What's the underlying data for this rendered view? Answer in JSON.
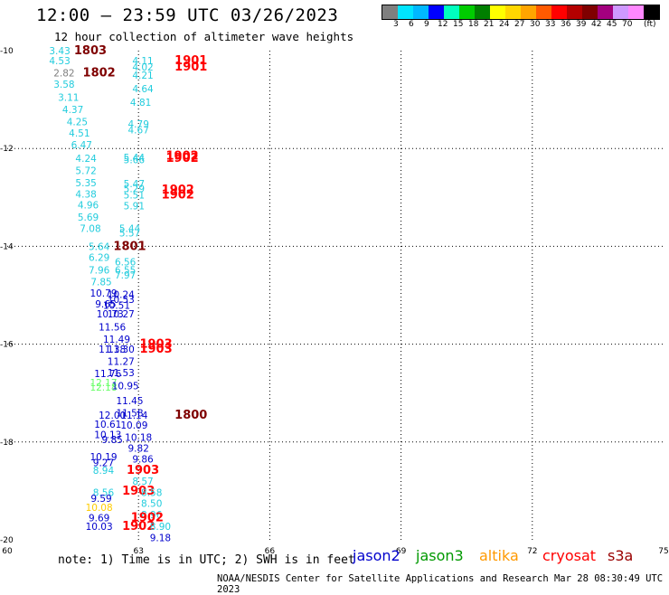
{
  "header": {
    "title": "12:00 – 23:59 UTC 03/26/2023",
    "subtitle": "12 hour collection of altimeter wave heights"
  },
  "colorbar": {
    "colors": [
      "#7f7f7f",
      "#00e5ff",
      "#00b8ff",
      "#0000ff",
      "#00ffbf",
      "#00cc00",
      "#007f00",
      "#ffff00",
      "#ffd700",
      "#ffa500",
      "#ff5a00",
      "#ff0000",
      "#b40000",
      "#7f0000",
      "#a3007f",
      "#cf99ff",
      "#ff88ff",
      "#000000"
    ],
    "labels": [
      "3",
      "6",
      "9",
      "12",
      "15",
      "18",
      "21",
      "24",
      "27",
      "30",
      "33",
      "36",
      "39",
      "42",
      "45",
      "70"
    ],
    "unit": "(ft)"
  },
  "note": "note:  1) Time is in UTC;  2) SWH is in feet",
  "legend": [
    {
      "label": "jason2",
      "color": "#0000cc"
    },
    {
      "label": "jason3",
      "color": "#009900"
    },
    {
      "label": "altika",
      "color": "#ff9900"
    },
    {
      "label": "cryosat",
      "color": "#ff0000"
    },
    {
      "label": "s3a",
      "color": "#990000"
    }
  ],
  "footer": "NOAA/NESDIS Center for Satellite Applications and Research    Mar 28 08:30:49 UTC 2023",
  "chart_data": {
    "type": "scatter",
    "xlim": [
      60,
      75
    ],
    "ylim": [
      -20,
      -10
    ],
    "x_ticks": [
      "60",
      "63",
      "66",
      "69",
      "72",
      "75"
    ],
    "y_ticks": [
      "-10",
      "-12",
      "-14",
      "-16",
      "-18",
      "-20"
    ],
    "grid": "dotted",
    "points": [
      {
        "x": 61.2,
        "y": -10.0,
        "v": "3.43",
        "c": "#22ccdd"
      },
      {
        "x": 61.9,
        "y": -10.0,
        "v": "1803",
        "c": "#7f0000",
        "big": true
      },
      {
        "x": 61.2,
        "y": -10.2,
        "v": "4.53",
        "c": "#22ccdd"
      },
      {
        "x": 63.1,
        "y": -10.2,
        "v": "4.11",
        "c": "#22ccdd"
      },
      {
        "x": 64.2,
        "y": -10.2,
        "v": "1901",
        "c": "#ff0000",
        "big": true
      },
      {
        "x": 63.1,
        "y": -10.33,
        "v": "4.02",
        "c": "#22ccdd"
      },
      {
        "x": 64.2,
        "y": -10.33,
        "v": "1901",
        "c": "#ff0000",
        "big": true
      },
      {
        "x": 61.3,
        "y": -10.45,
        "v": "2.82",
        "c": "#7f7f7f"
      },
      {
        "x": 62.1,
        "y": -10.45,
        "v": "1802",
        "c": "#7f0000",
        "big": true
      },
      {
        "x": 63.1,
        "y": -10.5,
        "v": "4.21",
        "c": "#22ccdd"
      },
      {
        "x": 61.3,
        "y": -10.68,
        "v": "3.58",
        "c": "#22ccdd"
      },
      {
        "x": 63.1,
        "y": -10.78,
        "v": "4.64",
        "c": "#22ccdd"
      },
      {
        "x": 61.4,
        "y": -10.95,
        "v": "3.11",
        "c": "#22ccdd"
      },
      {
        "x": 63.05,
        "y": -11.05,
        "v": "4.81",
        "c": "#22ccdd"
      },
      {
        "x": 61.5,
        "y": -11.2,
        "v": "4.37",
        "c": "#22ccdd"
      },
      {
        "x": 61.6,
        "y": -11.45,
        "v": "4.25",
        "c": "#22ccdd"
      },
      {
        "x": 63.0,
        "y": -11.5,
        "v": "4.79",
        "c": "#22ccdd"
      },
      {
        "x": 61.65,
        "y": -11.68,
        "v": "4.51",
        "c": "#22ccdd"
      },
      {
        "x": 63.0,
        "y": -11.62,
        "v": "4.67",
        "c": "#22ccdd"
      },
      {
        "x": 61.7,
        "y": -11.92,
        "v": "6.47",
        "c": "#22ccdd"
      },
      {
        "x": 61.8,
        "y": -12.2,
        "v": "4.24",
        "c": "#22ccdd"
      },
      {
        "x": 62.9,
        "y": -12.18,
        "v": "5.44",
        "c": "#22ccdd"
      },
      {
        "x": 62.9,
        "y": -12.23,
        "v": "5.66",
        "c": "#22ccdd"
      },
      {
        "x": 64.0,
        "y": -12.15,
        "v": "1902",
        "c": "#ff0000",
        "big": true
      },
      {
        "x": 64.0,
        "y": -12.2,
        "v": "1902",
        "c": "#ff0000",
        "big": true
      },
      {
        "x": 61.8,
        "y": -12.45,
        "v": "5.72",
        "c": "#22ccdd"
      },
      {
        "x": 61.8,
        "y": -12.7,
        "v": "5.35",
        "c": "#22ccdd"
      },
      {
        "x": 62.9,
        "y": -12.72,
        "v": "5.47",
        "c": "#22ccdd"
      },
      {
        "x": 62.9,
        "y": -12.82,
        "v": "5.29",
        "c": "#22ccdd"
      },
      {
        "x": 63.9,
        "y": -12.85,
        "v": "1902",
        "c": "#ff0000",
        "big": true
      },
      {
        "x": 61.8,
        "y": -12.93,
        "v": "4.38",
        "c": "#22ccdd"
      },
      {
        "x": 62.9,
        "y": -12.95,
        "v": "5.51",
        "c": "#22ccdd"
      },
      {
        "x": 63.9,
        "y": -12.95,
        "v": "1902",
        "c": "#ff0000",
        "big": true
      },
      {
        "x": 61.85,
        "y": -13.15,
        "v": "4.96",
        "c": "#22ccdd"
      },
      {
        "x": 62.9,
        "y": -13.17,
        "v": "5.91",
        "c": "#22ccdd"
      },
      {
        "x": 61.85,
        "y": -13.4,
        "v": "5.69",
        "c": "#22ccdd"
      },
      {
        "x": 61.9,
        "y": -13.63,
        "v": "7.08",
        "c": "#22ccdd"
      },
      {
        "x": 62.8,
        "y": -13.63,
        "v": "5.44",
        "c": "#22ccdd"
      },
      {
        "x": 62.8,
        "y": -13.72,
        "v": "5.57",
        "c": "#22ccdd"
      },
      {
        "x": 62.1,
        "y": -14.0,
        "v": "5.64",
        "c": "#22ccdd"
      },
      {
        "x": 62.8,
        "y": -14.0,
        "v": "1801",
        "c": "#7f0000",
        "big": true
      },
      {
        "x": 62.1,
        "y": -14.22,
        "v": "6.29",
        "c": "#22ccdd"
      },
      {
        "x": 62.7,
        "y": -14.32,
        "v": "6.56",
        "c": "#22ccdd"
      },
      {
        "x": 62.1,
        "y": -14.48,
        "v": "7.96",
        "c": "#22ccdd"
      },
      {
        "x": 62.7,
        "y": -14.48,
        "v": "6.55",
        "c": "#22ccdd"
      },
      {
        "x": 62.7,
        "y": -14.58,
        "v": "7.97",
        "c": "#22ccdd"
      },
      {
        "x": 62.15,
        "y": -14.72,
        "v": "7.85",
        "c": "#22ccdd"
      },
      {
        "x": 62.2,
        "y": -14.95,
        "v": "10.79",
        "c": "#0000cc"
      },
      {
        "x": 62.6,
        "y": -14.98,
        "v": "10.24",
        "c": "#0000cc"
      },
      {
        "x": 62.6,
        "y": -15.08,
        "v": "10.53",
        "c": "#0000cc"
      },
      {
        "x": 62.25,
        "y": -15.18,
        "v": "9.65",
        "c": "#0000cc"
      },
      {
        "x": 62.5,
        "y": -15.2,
        "v": "10.51",
        "c": "#0000cc"
      },
      {
        "x": 62.35,
        "y": -15.38,
        "v": "10.73",
        "c": "#0000cc"
      },
      {
        "x": 62.6,
        "y": -15.38,
        "v": "10.27",
        "c": "#0000cc"
      },
      {
        "x": 62.4,
        "y": -15.65,
        "v": "11.56",
        "c": "#0000cc"
      },
      {
        "x": 62.5,
        "y": -15.9,
        "v": "11.49",
        "c": "#0000cc"
      },
      {
        "x": 62.4,
        "y": -16.1,
        "v": "11.38",
        "c": "#0000cc"
      },
      {
        "x": 62.6,
        "y": -16.1,
        "v": "11.30",
        "c": "#0000cc"
      },
      {
        "x": 63.4,
        "y": -16.0,
        "v": "1903",
        "c": "#ff0000",
        "big": true
      },
      {
        "x": 63.4,
        "y": -16.1,
        "v": "1903",
        "c": "#ff0000",
        "big": true
      },
      {
        "x": 62.6,
        "y": -16.35,
        "v": "11.27",
        "c": "#0000cc"
      },
      {
        "x": 62.3,
        "y": -16.6,
        "v": "11.76",
        "c": "#0000cc"
      },
      {
        "x": 62.6,
        "y": -16.58,
        "v": "11.53",
        "c": "#0000cc"
      },
      {
        "x": 62.2,
        "y": -16.78,
        "v": "12.17",
        "c": "#66ff66"
      },
      {
        "x": 62.2,
        "y": -16.88,
        "v": "12.18",
        "c": "#66ff66"
      },
      {
        "x": 62.7,
        "y": -16.85,
        "v": "10.95",
        "c": "#0000cc"
      },
      {
        "x": 62.8,
        "y": -17.15,
        "v": "11.45",
        "c": "#0000cc"
      },
      {
        "x": 62.8,
        "y": -17.4,
        "v": "11.58",
        "c": "#0000cc"
      },
      {
        "x": 62.4,
        "y": -17.45,
        "v": "12.00",
        "c": "#0000cc"
      },
      {
        "x": 62.9,
        "y": -17.45,
        "v": "11.14",
        "c": "#0000cc"
      },
      {
        "x": 64.2,
        "y": -17.45,
        "v": "1800",
        "c": "#7f0000",
        "big": true
      },
      {
        "x": 62.3,
        "y": -17.63,
        "v": "10.61",
        "c": "#0000cc"
      },
      {
        "x": 62.9,
        "y": -17.65,
        "v": "10.09",
        "c": "#0000cc"
      },
      {
        "x": 62.3,
        "y": -17.85,
        "v": "10.13",
        "c": "#0000cc"
      },
      {
        "x": 62.4,
        "y": -17.95,
        "v": "9.85",
        "c": "#0000cc"
      },
      {
        "x": 63.0,
        "y": -17.9,
        "v": "10.18",
        "c": "#0000cc"
      },
      {
        "x": 63.0,
        "y": -18.12,
        "v": "9.82",
        "c": "#0000cc"
      },
      {
        "x": 62.2,
        "y": -18.3,
        "v": "10.19",
        "c": "#0000cc"
      },
      {
        "x": 62.2,
        "y": -18.42,
        "v": "9.27",
        "c": "#0000cc"
      },
      {
        "x": 63.1,
        "y": -18.35,
        "v": "9.86",
        "c": "#0000cc"
      },
      {
        "x": 62.2,
        "y": -18.58,
        "v": "8.94",
        "c": "#22ccdd"
      },
      {
        "x": 63.1,
        "y": -18.58,
        "v": "1903",
        "c": "#ff0000",
        "big": true
      },
      {
        "x": 63.1,
        "y": -18.8,
        "v": "8.57",
        "c": "#22ccdd"
      },
      {
        "x": 62.2,
        "y": -19.03,
        "v": "8.56",
        "c": "#22ccdd"
      },
      {
        "x": 63.0,
        "y": -19.0,
        "v": "1903",
        "c": "#ff0000",
        "big": true
      },
      {
        "x": 63.3,
        "y": -19.03,
        "v": "8.58",
        "c": "#22ccdd"
      },
      {
        "x": 62.15,
        "y": -19.15,
        "v": "9.59",
        "c": "#0000cc"
      },
      {
        "x": 63.3,
        "y": -19.25,
        "v": "8.50",
        "c": "#22ccdd"
      },
      {
        "x": 62.1,
        "y": -19.33,
        "v": "10.08",
        "c": "#ffcc00"
      },
      {
        "x": 63.3,
        "y": -19.48,
        "v": "8.96",
        "c": "#22ccdd"
      },
      {
        "x": 62.1,
        "y": -19.55,
        "v": "9.69",
        "c": "#0000cc"
      },
      {
        "x": 63.2,
        "y": -19.55,
        "v": "1902",
        "c": "#ff0000",
        "big": true
      },
      {
        "x": 62.1,
        "y": -19.72,
        "v": "10.03",
        "c": "#0000cc"
      },
      {
        "x": 63.0,
        "y": -19.72,
        "v": "1902",
        "c": "#ff0000",
        "big": true
      },
      {
        "x": 63.5,
        "y": -19.72,
        "v": "8.90",
        "c": "#22ccdd"
      },
      {
        "x": 63.5,
        "y": -19.95,
        "v": "9.18",
        "c": "#0000cc"
      }
    ]
  }
}
